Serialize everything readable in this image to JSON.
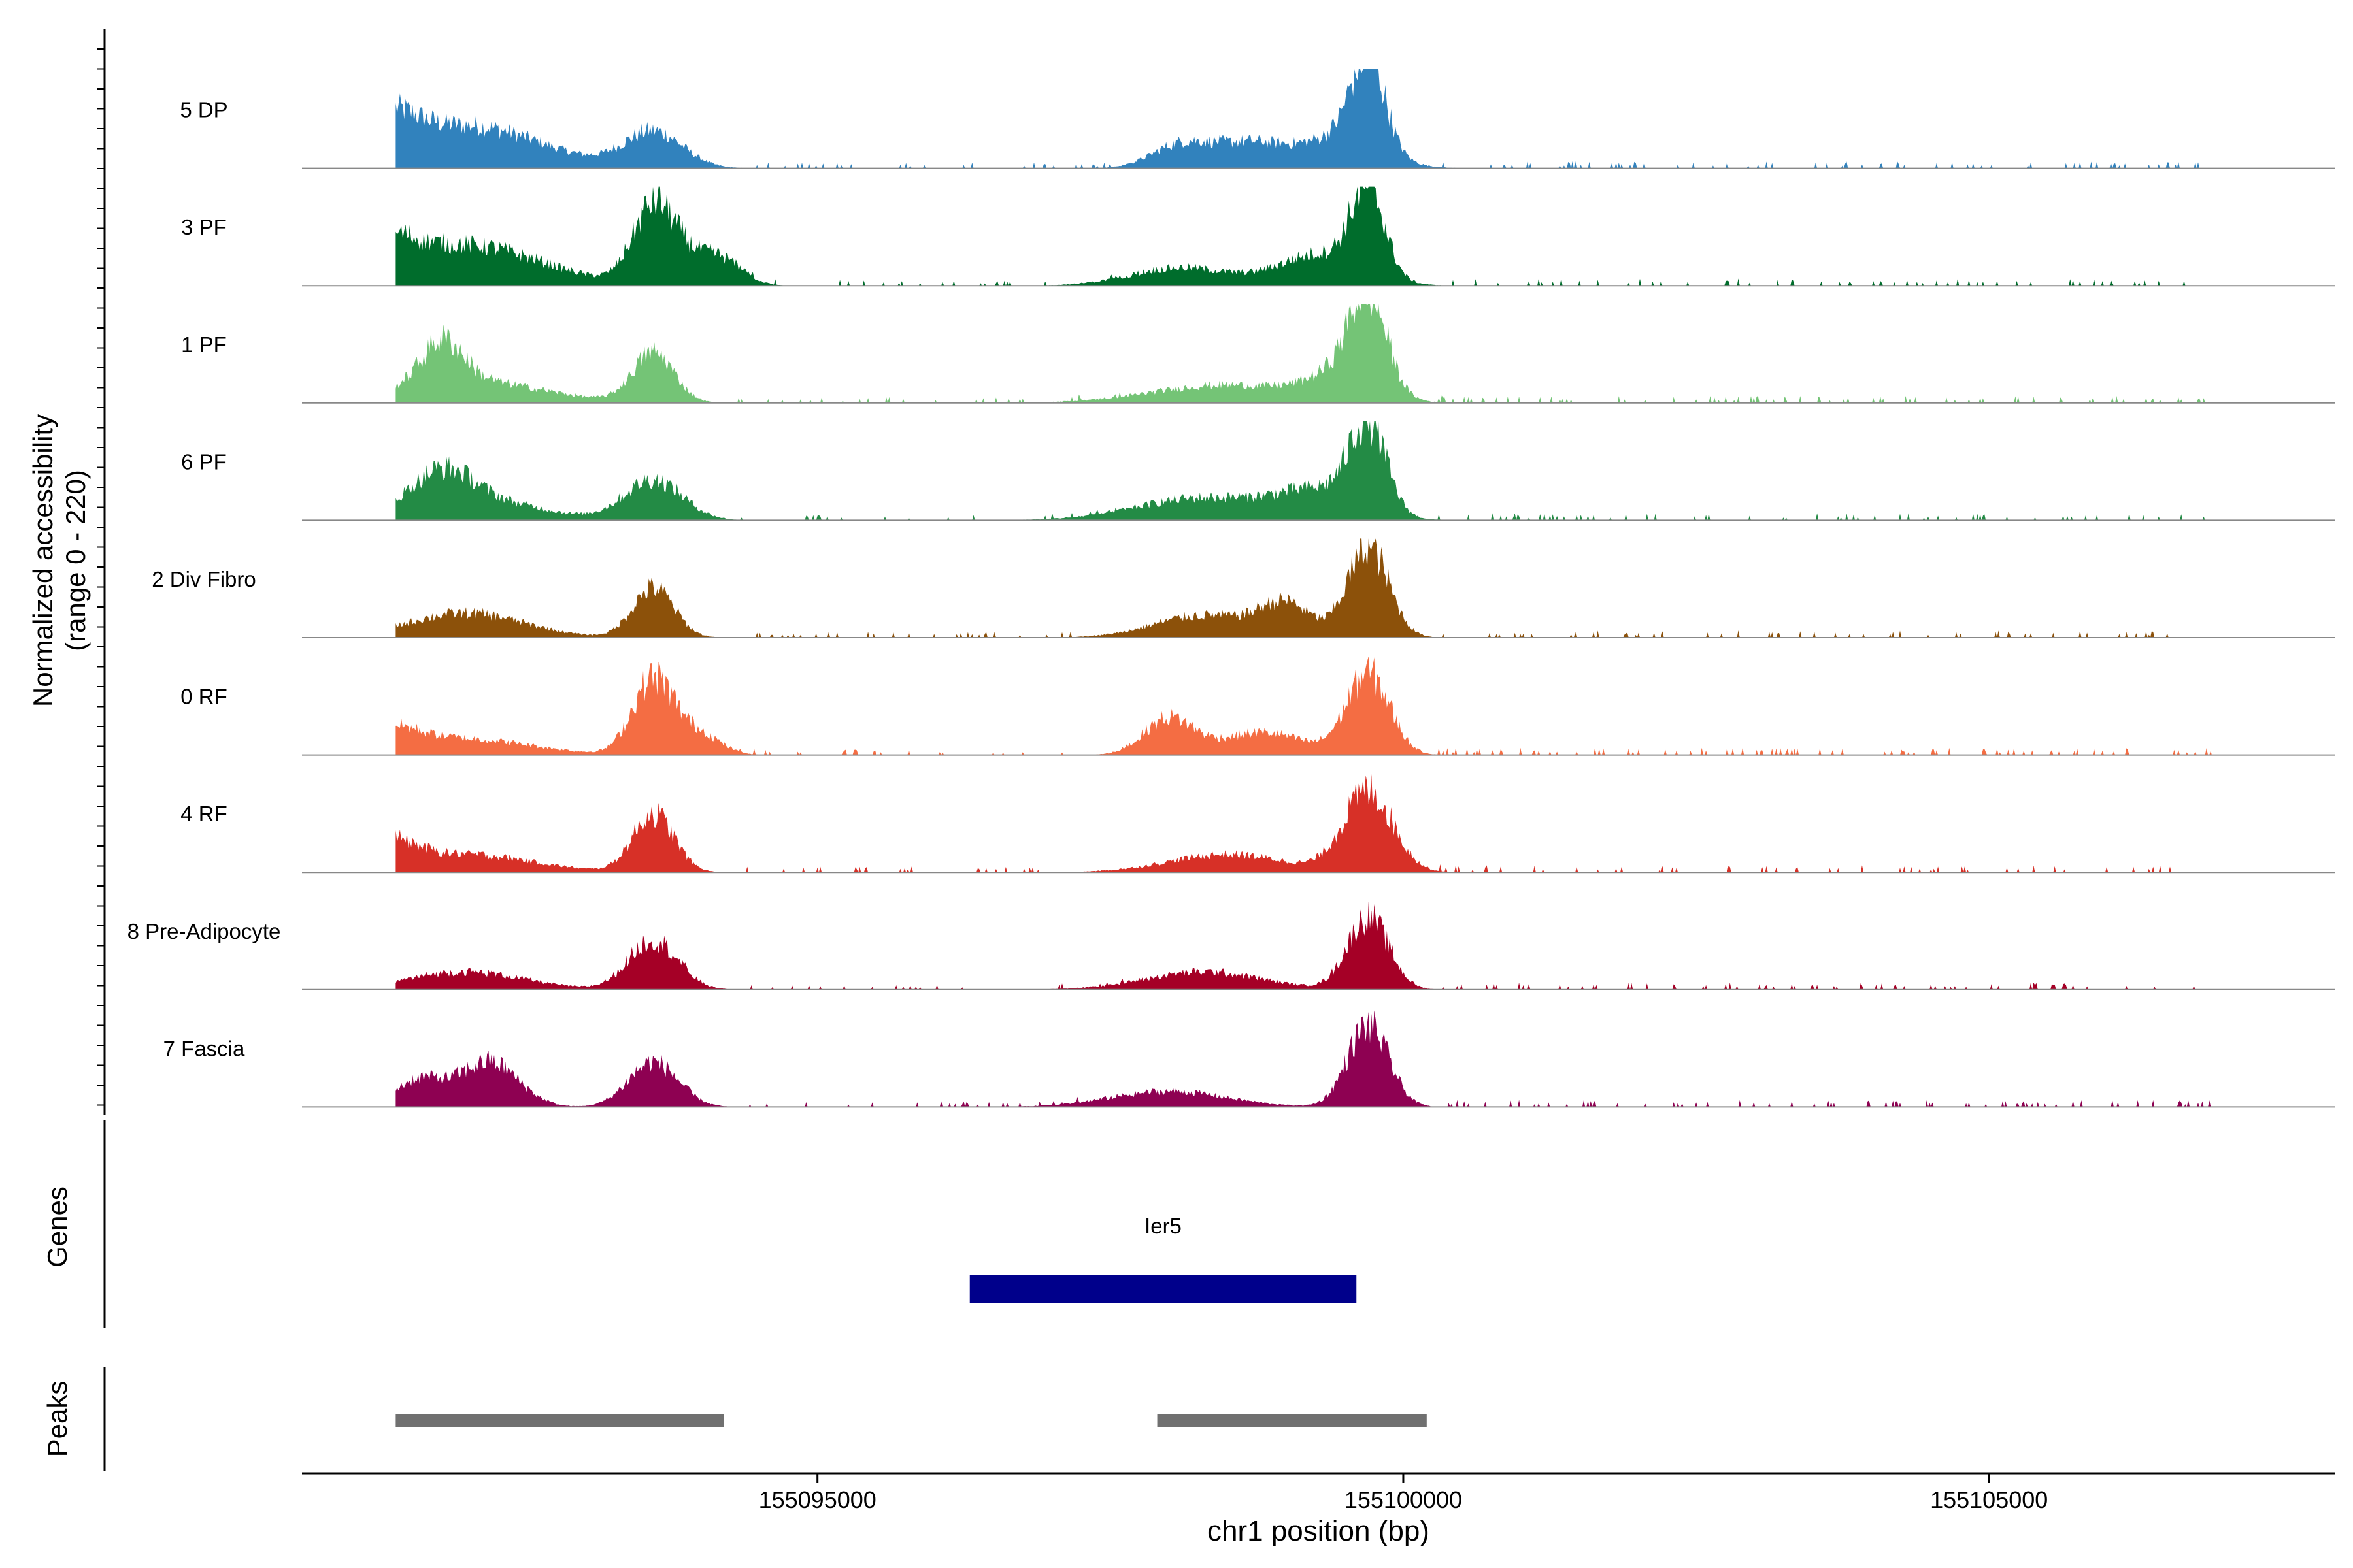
{
  "chart_data": {
    "type": "area",
    "title": "",
    "ylabel_line1": "Normalized accessibility",
    "ylabel_line2": "(range 0 - 220)",
    "ylim": [
      0,
      220
    ],
    "xlabel": "chr1 position (bp)",
    "xlim": [
      155090600,
      155107950
    ],
    "x_ticks": [
      155095000,
      155100000,
      155105000
    ],
    "x_tick_labels": [
      "155095000",
      "155100000",
      "155105000"
    ],
    "tracks": [
      {
        "name": "5 DP",
        "color": "#3182BD",
        "peaks": [
          [
            155091300,
            80,
            350
          ],
          [
            155092000,
            95,
            900
          ],
          [
            155093600,
            80,
            350
          ],
          [
            155098100,
            50,
            350
          ],
          [
            155098700,
            55,
            450
          ],
          [
            155099700,
            200,
            200
          ],
          [
            155099500,
            70,
            450
          ]
        ]
      },
      {
        "name": "3 PF",
        "color": "#006D2C",
        "peaks": [
          [
            155091300,
            65,
            350
          ],
          [
            155092000,
            90,
            900
          ],
          [
            155093600,
            160,
            250
          ],
          [
            155093900,
            50,
            350
          ],
          [
            155094200,
            40,
            250
          ],
          [
            155098100,
            40,
            600
          ],
          [
            155099300,
            70,
            500
          ],
          [
            155099700,
            190,
            200
          ]
        ]
      },
      {
        "name": "1 PF",
        "color": "#74C476",
        "peaks": [
          [
            155091800,
            95,
            250
          ],
          [
            155092000,
            50,
            900
          ],
          [
            155093600,
            110,
            250
          ],
          [
            155098500,
            40,
            900
          ],
          [
            155099500,
            60,
            400
          ],
          [
            155099700,
            200,
            220
          ]
        ]
      },
      {
        "name": "6 PF",
        "color": "#238B45",
        "peaks": [
          [
            155091800,
            70,
            350
          ],
          [
            155092000,
            50,
            800
          ],
          [
            155093600,
            90,
            350
          ],
          [
            155098300,
            50,
            800
          ],
          [
            155099300,
            60,
            500
          ],
          [
            155099700,
            190,
            220
          ]
        ]
      },
      {
        "name": "2 Div Fibro",
        "color": "#8C510A",
        "peaks": [
          [
            155092000,
            55,
            700
          ],
          [
            155093600,
            110,
            250
          ],
          [
            155098300,
            50,
            600
          ],
          [
            155099000,
            70,
            300
          ],
          [
            155099700,
            200,
            250
          ]
        ]
      },
      {
        "name": "0 RF",
        "color": "#F46D43",
        "peaks": [
          [
            155091300,
            50,
            400
          ],
          [
            155092000,
            35,
            800
          ],
          [
            155093600,
            170,
            250
          ],
          [
            155094000,
            45,
            250
          ],
          [
            155098000,
            80,
            300
          ],
          [
            155098800,
            50,
            500
          ],
          [
            155099700,
            180,
            260
          ]
        ]
      },
      {
        "name": "4 RF",
        "color": "#D73027",
        "peaks": [
          [
            155091300,
            60,
            350
          ],
          [
            155092000,
            40,
            800
          ],
          [
            155093600,
            130,
            250
          ],
          [
            155098500,
            40,
            700
          ],
          [
            155099700,
            180,
            300
          ]
        ]
      },
      {
        "name": "8 Pre-Adipocyte",
        "color": "#A50026",
        "peaks": [
          [
            155092000,
            40,
            700
          ],
          [
            155093600,
            110,
            300
          ],
          [
            155098300,
            40,
            700
          ],
          [
            155099700,
            160,
            250
          ]
        ]
      },
      {
        "name": "7 Fascia",
        "color": "#8E0152",
        "peaks": [
          [
            155092200,
            100,
            350
          ],
          [
            155091600,
            60,
            300
          ],
          [
            155093600,
            100,
            300
          ],
          [
            155098000,
            35,
            700
          ],
          [
            155099700,
            180,
            250
          ]
        ]
      }
    ],
    "gene": {
      "track_label": "Genes",
      "name": "Ier5",
      "start": 155096300,
      "end": 155099600,
      "color": "#00008B"
    },
    "peaks_track": {
      "track_label": "Peaks",
      "color": "#707070",
      "regions": [
        [
          155091400,
          155094200
        ],
        [
          155097900,
          155100200
        ]
      ]
    }
  }
}
